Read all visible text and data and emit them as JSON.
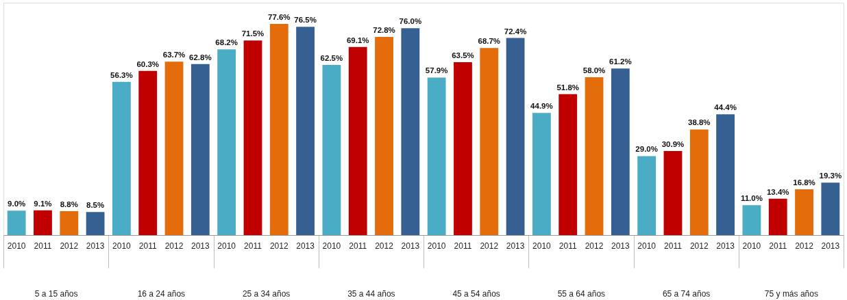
{
  "chart_data": {
    "type": "bar",
    "categories": [
      "5 a 15 años",
      "16 a 24 años",
      "25 a 34 años",
      "35 a 44 años",
      "45 a 54 años",
      "55 a 64 años",
      "65 a 74 años",
      "75 y más años"
    ],
    "series": [
      {
        "name": "2010",
        "color": "#4bacc6",
        "values": [
          9.0,
          56.3,
          68.2,
          62.5,
          57.9,
          44.9,
          29.0,
          11.0
        ],
        "value_labels": [
          "9.0%",
          "56.3%",
          "68.2%",
          "62.5%",
          "57.9%",
          "44.9%",
          "29.0%",
          "11.0%"
        ]
      },
      {
        "name": "2011",
        "color": "#c00000",
        "values": [
          9.1,
          60.3,
          71.5,
          69.1,
          63.5,
          51.8,
          30.9,
          13.4
        ],
        "value_labels": [
          "9.1%",
          "60.3%",
          "71.5%",
          "69.1%",
          "63.5%",
          "51.8%",
          "30.9%",
          "13.4%"
        ]
      },
      {
        "name": "2012",
        "color": "#e46c0a",
        "values": [
          8.8,
          63.7,
          77.6,
          72.8,
          68.7,
          58.0,
          38.8,
          16.8
        ],
        "value_labels": [
          "8.8%",
          "63.7%",
          "77.6%",
          "72.8%",
          "68.7%",
          "58.0%",
          "38.8%",
          "16.8%"
        ]
      },
      {
        "name": "2013",
        "color": "#366092",
        "values": [
          8.5,
          62.8,
          76.5,
          76.0,
          72.4,
          61.2,
          44.4,
          19.3
        ],
        "value_labels": [
          "8.5%",
          "62.8%",
          "76.5%",
          "76.0%",
          "72.4%",
          "61.2%",
          "44.4%",
          "19.3%"
        ]
      }
    ]
  }
}
